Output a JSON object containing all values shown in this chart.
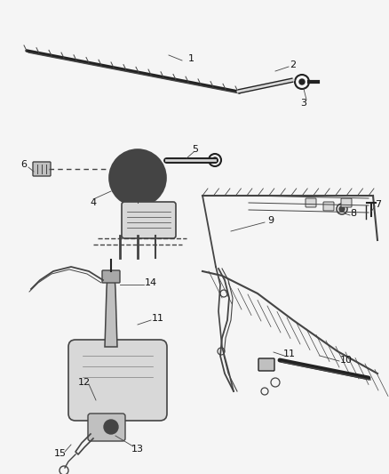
{
  "bg_color": "#f5f5f5",
  "line_color": "#444444",
  "dark_line": "#222222",
  "text_color": "#111111",
  "fig_width": 4.38,
  "fig_height": 5.33,
  "dpi": 100,
  "fill_light": "#d8d8d8",
  "fill_mid": "#c0c0c0",
  "fill_dark": "#a8a8a8"
}
